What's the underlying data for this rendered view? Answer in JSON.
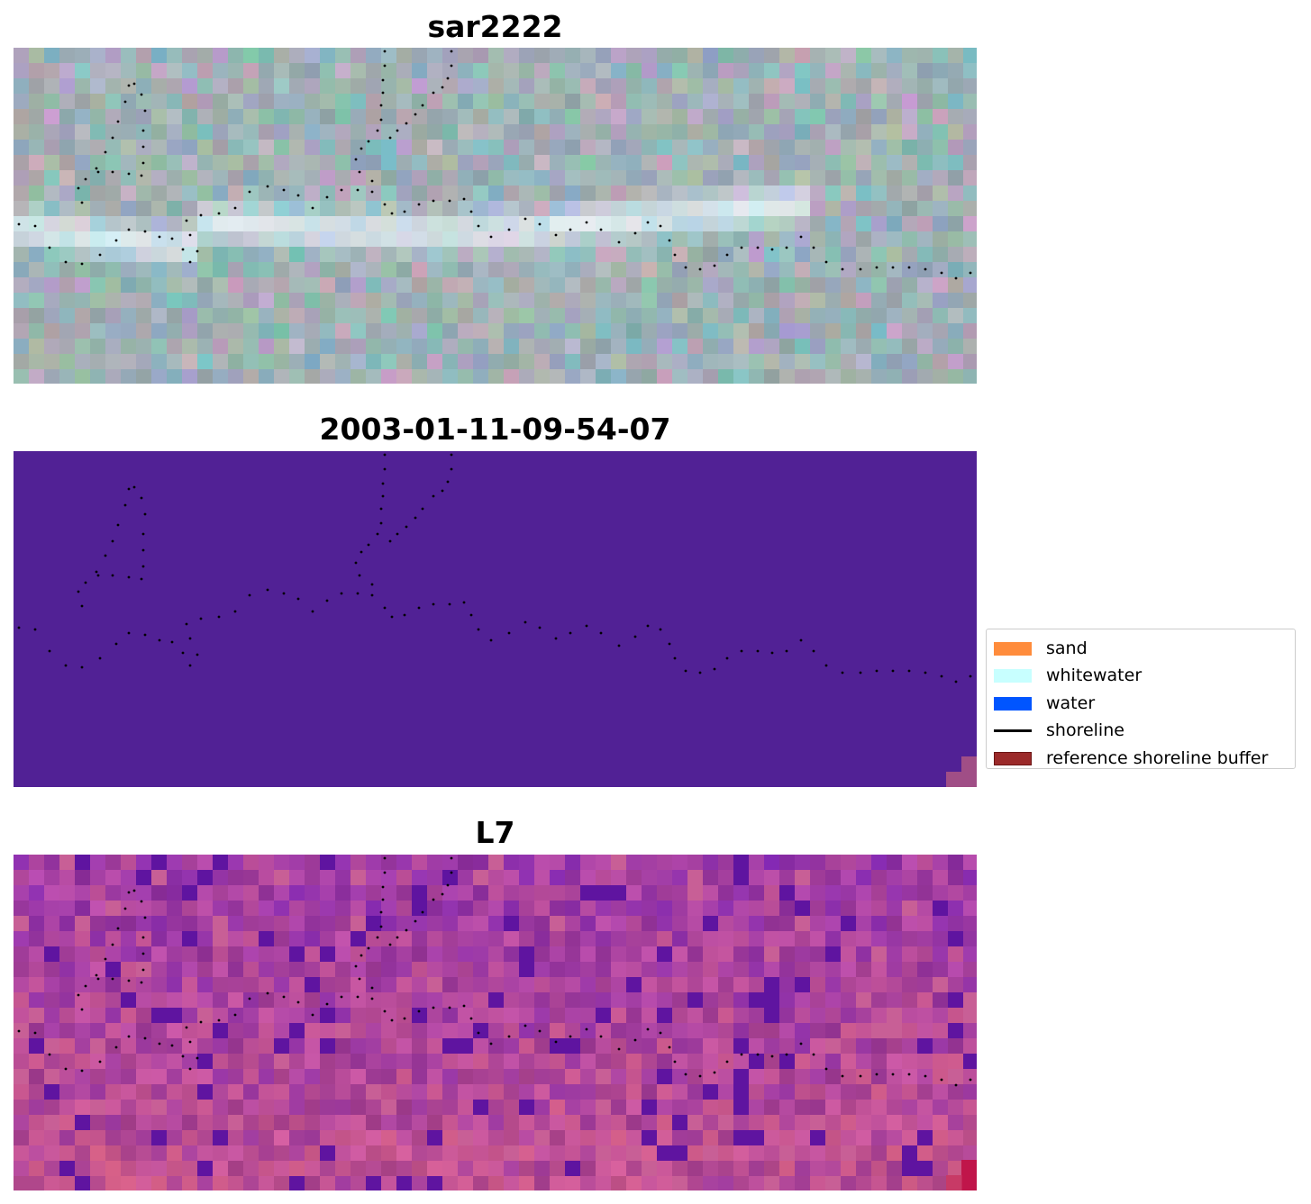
{
  "panels": [
    {
      "title": "sar2222",
      "style": "rgb_composite",
      "base_color": "#a7b3b6"
    },
    {
      "title": "2003-01-11-09-54-07",
      "style": "classification",
      "base_color": "#512195"
    },
    {
      "title": "L7",
      "style": "index_map",
      "base_color": "#8e3a9c"
    }
  ],
  "legend": {
    "items": [
      {
        "label": "sand",
        "kind": "patch",
        "color": "#ff8c3c",
        "edge": "#ff8c3c"
      },
      {
        "label": "whitewater",
        "kind": "patch",
        "color": "#c8ffff",
        "edge": "#c8ffff"
      },
      {
        "label": "water",
        "kind": "patch",
        "color": "#0055ff",
        "edge": "#0055ff"
      },
      {
        "label": "shoreline",
        "kind": "line",
        "color": "#000000"
      },
      {
        "label": "reference shoreline buffer",
        "kind": "patch",
        "color": "#9b2a2a",
        "edge": "#6b1414"
      }
    ]
  },
  "shoreline_color": "#000000"
}
